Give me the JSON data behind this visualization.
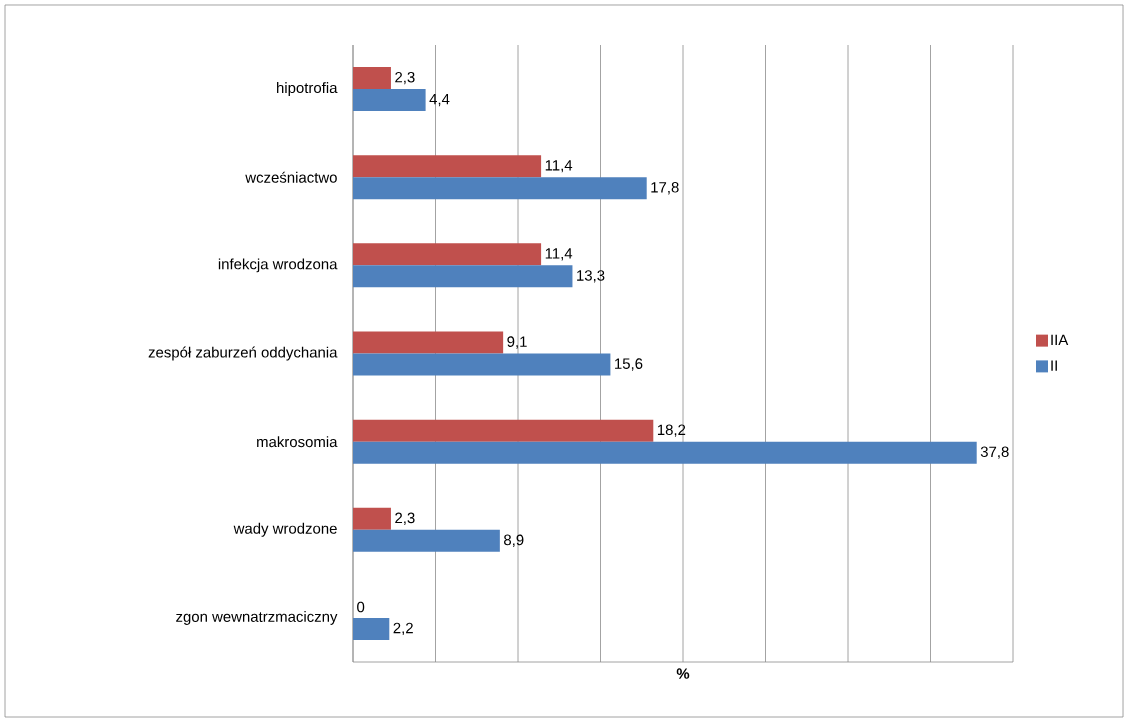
{
  "chart_data": {
    "type": "bar",
    "orientation": "horizontal",
    "xlabel": "%",
    "categories": [
      "hipotrofia",
      "wcześniactwo",
      "infekcja wrodzona",
      "zespół zaburzeń oddychania",
      "makrosomia",
      "wady wrodzone",
      "zgon wewnatrzmaciczny"
    ],
    "series": [
      {
        "name": "IIA",
        "color": "#c0504d",
        "values": [
          2.3,
          11.4,
          11.4,
          9.1,
          18.2,
          2.3,
          0
        ],
        "value_labels": [
          "2,3",
          "11,4",
          "11,4",
          "9,1",
          "18,2",
          "2,3",
          "0"
        ]
      },
      {
        "name": "II",
        "color": "#4f81bd",
        "values": [
          4.4,
          17.8,
          13.3,
          15.6,
          37.8,
          8.9,
          2.2
        ],
        "value_labels": [
          "4,4",
          "17,8",
          "13,3",
          "15,6",
          "37,8",
          "8,9",
          "2,2"
        ]
      }
    ],
    "xlim": [
      0,
      40
    ],
    "xticks": [
      {
        "value": 0,
        "label": null
      },
      {
        "value": 5,
        "label": null
      },
      {
        "value": 10,
        "label": null
      },
      {
        "value": 15,
        "label": null
      },
      {
        "value": 20,
        "label": null
      },
      {
        "value": 25,
        "label": null
      },
      {
        "value": 30,
        "label": null
      },
      {
        "value": 35,
        "label": null
      },
      {
        "value": 40,
        "label": null
      }
    ],
    "grid": "x",
    "legend": "right",
    "tick_labels": "y"
  }
}
